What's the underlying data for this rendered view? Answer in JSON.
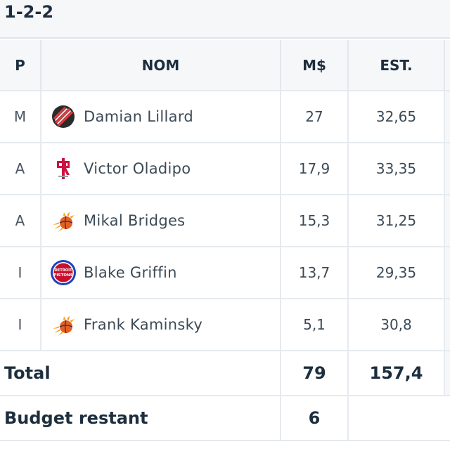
{
  "lineup": {
    "formation": "1-2-2"
  },
  "table": {
    "headers": {
      "position": "P",
      "name": "NOM",
      "salary": "M$",
      "estimate": "EST."
    },
    "rows": [
      {
        "position": "M",
        "player": "Damian Lillard",
        "team_logo": "portland-trail-blazers-logo",
        "salary": "27",
        "estimate": "32,65"
      },
      {
        "position": "A",
        "player": "Victor Oladipo",
        "team_logo": "houston-rockets-logo",
        "salary": "17,9",
        "estimate": "33,35"
      },
      {
        "position": "A",
        "player": "Mikal Bridges",
        "team_logo": "phoenix-suns-logo",
        "salary": "15,3",
        "estimate": "31,25"
      },
      {
        "position": "I",
        "player": "Blake Griffin",
        "team_logo": "detroit-pistons-logo",
        "salary": "13,7",
        "estimate": "29,35"
      },
      {
        "position": "I",
        "player": "Frank Kaminsky",
        "team_logo": "phoenix-suns-logo",
        "salary": "5,1",
        "estimate": "30,8"
      }
    ],
    "total": {
      "label": "Total",
      "salary": "79",
      "estimate": "157,4"
    },
    "budget": {
      "label": "Budget restant",
      "value": "6"
    }
  },
  "logos": {
    "pistons_text_top": "DETROIT",
    "pistons_text_bottom": "PISTONS"
  },
  "colors": {
    "header_bg": "#f5f7f9",
    "border": "#e6eaee",
    "text_dark": "#1d2e3e",
    "text_body": "#3c4a56",
    "blazers_red": "#e03a3e",
    "rockets_red": "#ce1141",
    "suns_orange": "#e56020",
    "pistons_blue": "#1d42ba",
    "pistons_red": "#c8102e"
  }
}
